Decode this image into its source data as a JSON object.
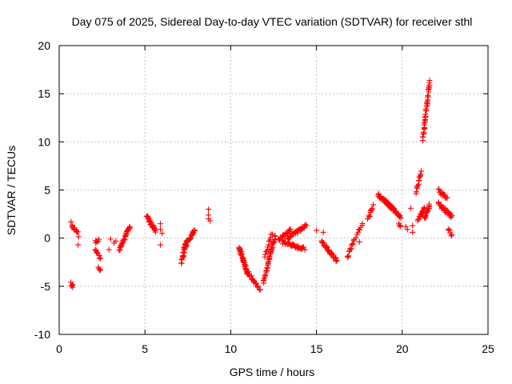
{
  "chart_data": {
    "type": "scatter",
    "title": "Day 075 of 2025, Sidereal Day-to-day VTEC variation (SDTVAR) for receiver sthl",
    "xlabel": "GPS time / hours",
    "ylabel": "SDTVAR / TECUs",
    "xlim": [
      0,
      25
    ],
    "ylim": [
      -10,
      20
    ],
    "xticks": [
      0,
      5,
      10,
      15,
      20,
      25
    ],
    "yticks": [
      -10,
      -5,
      0,
      5,
      10,
      15,
      20
    ],
    "grid": true,
    "marker": "plus",
    "color": "#ff0000",
    "segments": [
      {
        "x0": 0.7,
        "x1": 0.8,
        "y0": -4.7,
        "y1": -5.0,
        "n": 6
      },
      {
        "x0": 0.7,
        "x1": 0.9,
        "y0": 1.6,
        "y1": 0.8,
        "n": 8
      },
      {
        "x0": 1.0,
        "x1": 1.1,
        "y0": 0.9,
        "y1": 0.3,
        "n": 4
      },
      {
        "x0": 2.1,
        "x1": 2.3,
        "y0": -0.4,
        "y1": -0.2,
        "n": 6
      },
      {
        "x0": 2.1,
        "x1": 2.4,
        "y0": -1.2,
        "y1": -2.0,
        "n": 10
      },
      {
        "x0": 2.3,
        "x1": 2.4,
        "y0": -3.0,
        "y1": -3.3,
        "n": 4
      },
      {
        "x0": 3.5,
        "x1": 4.1,
        "y0": -1.2,
        "y1": 1.2,
        "n": 30
      },
      {
        "x0": 5.1,
        "x1": 5.6,
        "y0": 2.3,
        "y1": 0.8,
        "n": 28
      },
      {
        "x0": 7.1,
        "x1": 7.4,
        "y0": -2.7,
        "y1": -0.4,
        "n": 22
      },
      {
        "x0": 7.3,
        "x1": 7.9,
        "y0": -1.0,
        "y1": 0.9,
        "n": 26
      },
      {
        "x0": 10.5,
        "x1": 11.0,
        "y0": -1.0,
        "y1": -3.8,
        "n": 40
      },
      {
        "x0": 11.0,
        "x1": 11.7,
        "y0": -3.6,
        "y1": -5.3,
        "n": 20
      },
      {
        "x0": 11.9,
        "x1": 12.6,
        "y0": -4.5,
        "y1": 0.2,
        "n": 45
      },
      {
        "x0": 12.0,
        "x1": 12.4,
        "y0": -2.0,
        "y1": 0.5,
        "n": 12
      },
      {
        "x0": 12.8,
        "x1": 13.5,
        "y0": -0.2,
        "y1": 0.8,
        "n": 18
      },
      {
        "x0": 13.3,
        "x1": 14.4,
        "y0": 0.0,
        "y1": 1.3,
        "n": 30
      },
      {
        "x0": 13.0,
        "x1": 14.3,
        "y0": -0.4,
        "y1": -1.1,
        "n": 35
      },
      {
        "x0": 15.3,
        "x1": 16.2,
        "y0": -0.3,
        "y1": -2.4,
        "n": 34
      },
      {
        "x0": 16.8,
        "x1": 17.2,
        "y0": -2.0,
        "y1": -0.2,
        "n": 12
      },
      {
        "x0": 17.3,
        "x1": 17.7,
        "y0": 0.2,
        "y1": 1.5,
        "n": 8
      },
      {
        "x0": 18.0,
        "x1": 18.3,
        "y0": 2.0,
        "y1": 3.3,
        "n": 10
      },
      {
        "x0": 18.6,
        "x1": 19.5,
        "y0": 4.5,
        "y1": 3.0,
        "n": 50
      },
      {
        "x0": 19.3,
        "x1": 19.9,
        "y0": 3.3,
        "y1": 2.2,
        "n": 22
      },
      {
        "x0": 19.8,
        "x1": 19.9,
        "y0": 1.7,
        "y1": 1.2,
        "n": 4
      },
      {
        "x0": 20.8,
        "x1": 21.1,
        "y0": 4.7,
        "y1": 7.0,
        "n": 14
      },
      {
        "x0": 20.9,
        "x1": 21.3,
        "y0": 1.8,
        "y1": 3.2,
        "n": 16
      },
      {
        "x0": 21.2,
        "x1": 21.6,
        "y0": 10.2,
        "y1": 16.4,
        "n": 40
      },
      {
        "x0": 21.3,
        "x1": 21.6,
        "y0": 2.0,
        "y1": 3.4,
        "n": 18
      },
      {
        "x0": 22.1,
        "x1": 22.6,
        "y0": 5.0,
        "y1": 4.1,
        "n": 14
      },
      {
        "x0": 22.1,
        "x1": 22.9,
        "y0": 3.6,
        "y1": 2.2,
        "n": 30
      },
      {
        "x0": 22.7,
        "x1": 22.9,
        "y0": 0.9,
        "y1": 0.2,
        "n": 6
      }
    ],
    "points": [
      [
        1.1,
        -0.7
      ],
      [
        1.0,
        0.7
      ],
      [
        3.0,
        -0.1
      ],
      [
        2.9,
        -1.2
      ],
      [
        3.2,
        -0.5
      ],
      [
        3.3,
        -0.3
      ],
      [
        5.9,
        1.5
      ],
      [
        5.9,
        0.9
      ],
      [
        6.0,
        0.5
      ],
      [
        5.9,
        -0.7
      ],
      [
        8.7,
        3.0
      ],
      [
        8.7,
        2.4
      ],
      [
        8.7,
        2.0
      ],
      [
        8.8,
        1.8
      ],
      [
        15.0,
        0.8
      ],
      [
        15.4,
        0.6
      ],
      [
        17.5,
        -0.4
      ],
      [
        20.3,
        0.9
      ],
      [
        20.2,
        1.2
      ],
      [
        20.6,
        1.3
      ],
      [
        20.5,
        3.1
      ],
      [
        20.6,
        0.6
      ]
    ]
  }
}
